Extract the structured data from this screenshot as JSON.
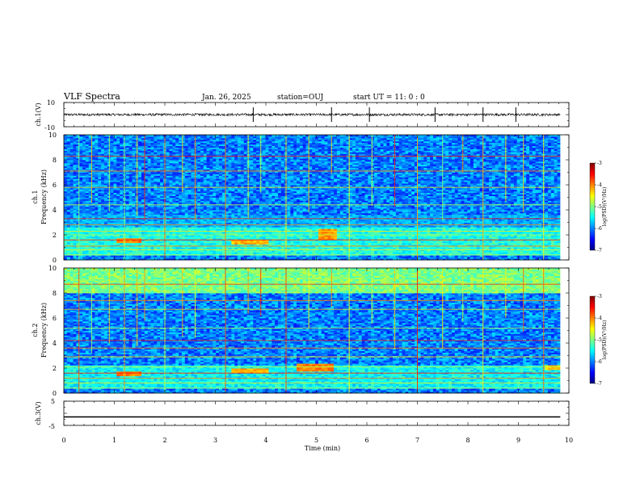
{
  "header": {
    "title": "VLF Spectra",
    "date": "Jan. 26, 2025",
    "station": "station=OUJ",
    "start": "start UT =  11: 0  : 0"
  },
  "chart_data": [
    {
      "type": "line",
      "panel": "ch1-waveform",
      "ylabel": "ch.1(V)",
      "ylim": [
        -10,
        10
      ],
      "y_tick_labels": [
        "10",
        "-10"
      ],
      "x_range": [
        0,
        9.83
      ],
      "baseline": 0,
      "noise_amplitude": 1.0,
      "spike_times": [
        3.75,
        5.3,
        6.05,
        7.35,
        8.3,
        8.95
      ]
    },
    {
      "type": "heatmap",
      "panel": "ch1-spectrogram",
      "ylabel": "ch.1",
      "ylabel2": "Frequency (kHz)",
      "ylim": [
        0,
        10
      ],
      "y_tick_labels": [
        "0",
        "2",
        "4",
        "6",
        "8",
        "10"
      ],
      "x_range": [
        0,
        9.83
      ],
      "color_scale": "log(PSD)(V²/Hz)",
      "color_range": [
        -7,
        -3
      ],
      "colorbar_ticks": [
        "-3",
        "-4",
        "-5",
        "-6",
        "-7"
      ],
      "colorbar_label": "log(PSD)(V²/Hz)",
      "features": [
        {
          "kind": "band",
          "f_low": 0.3,
          "f_high": 2.6,
          "level": -5.4
        },
        {
          "kind": "band",
          "f_low": 2.6,
          "f_high": 3.6,
          "level": -5.9
        },
        {
          "kind": "burst",
          "t_start": 1.0,
          "t_end": 1.5,
          "f_low": 1.3,
          "f_high": 1.7,
          "level": -4.2
        },
        {
          "kind": "burst",
          "t_start": 3.3,
          "t_end": 4.0,
          "f_low": 1.2,
          "f_high": 1.6,
          "level": -4.4
        },
        {
          "kind": "burst",
          "t_start": 5.0,
          "t_end": 5.4,
          "f_low": 1.6,
          "f_high": 2.4,
          "level": -4.3
        }
      ],
      "harmonic_lines_khz": [
        0.4,
        0.8,
        1.1,
        1.6,
        2.0,
        2.3,
        2.8,
        3.3,
        4.4,
        5.8,
        7.1,
        8.3
      ],
      "sferic_times": [
        0.3,
        0.55,
        0.9,
        1.2,
        1.45,
        1.6,
        2.0,
        2.35,
        2.6,
        3.2,
        3.65,
        3.9,
        4.4,
        4.85,
        5.3,
        5.65,
        6.1,
        6.55,
        7.0,
        7.5,
        7.9,
        8.3,
        8.75,
        9.1,
        9.5
      ]
    },
    {
      "type": "heatmap",
      "panel": "ch2-spectrogram",
      "ylabel": "ch.2",
      "ylabel2": "Frequency (kHz)",
      "ylim": [
        0,
        10
      ],
      "y_tick_labels": [
        "0",
        "2",
        "4",
        "6",
        "8",
        "10"
      ],
      "x_range": [
        0,
        9.83
      ],
      "color_scale": "log(PSD)(V²/Hz)",
      "color_range": [
        -7,
        -3
      ],
      "colorbar_ticks": [
        "-3",
        "-4",
        "-5",
        "-6",
        "-7"
      ],
      "colorbar_label": "log(PSD)(V²/Hz)",
      "features": [
        {
          "kind": "band",
          "f_low": 0.3,
          "f_high": 2.2,
          "level": -5.5
        },
        {
          "kind": "band",
          "f_low": 8.0,
          "f_high": 10.0,
          "level": -5.0
        },
        {
          "kind": "burst",
          "t_start": 1.0,
          "t_end": 1.5,
          "f_low": 1.3,
          "f_high": 1.7,
          "level": -4.2
        },
        {
          "kind": "burst",
          "t_start": 3.3,
          "t_end": 4.0,
          "f_low": 1.6,
          "f_high": 1.9,
          "level": -4.4
        },
        {
          "kind": "burst",
          "t_start": 4.6,
          "t_end": 5.3,
          "f_low": 1.7,
          "f_high": 2.3,
          "level": -4.2
        },
        {
          "kind": "burst",
          "t_start": 9.5,
          "t_end": 9.83,
          "f_low": 1.8,
          "f_high": 2.2,
          "level": -4.5
        }
      ],
      "harmonic_lines_khz": [
        0.4,
        0.8,
        1.2,
        1.6,
        2.1,
        2.9,
        3.6,
        4.2,
        5.2,
        6.7,
        7.4,
        8.7
      ],
      "sferic_times": [
        0.3,
        0.55,
        0.9,
        1.2,
        1.45,
        1.6,
        2.0,
        2.35,
        2.6,
        3.2,
        3.65,
        3.9,
        4.4,
        4.85,
        5.3,
        5.65,
        6.1,
        6.55,
        7.0,
        7.5,
        7.9,
        8.3,
        8.75,
        9.1,
        9.5
      ]
    },
    {
      "type": "line",
      "panel": "ch3-waveform",
      "ylabel": "ch.3(V)",
      "ylim": [
        -5,
        5
      ],
      "y_tick_labels": [
        "5",
        "-5"
      ],
      "x_range": [
        0,
        9.83
      ],
      "baseline": -1.5
    }
  ],
  "x_axis": {
    "label": "Time (min)",
    "range": [
      0,
      10
    ],
    "tick_labels": [
      "0",
      "1",
      "2",
      "3",
      "4",
      "5",
      "6",
      "7",
      "8",
      "9",
      "10"
    ]
  }
}
